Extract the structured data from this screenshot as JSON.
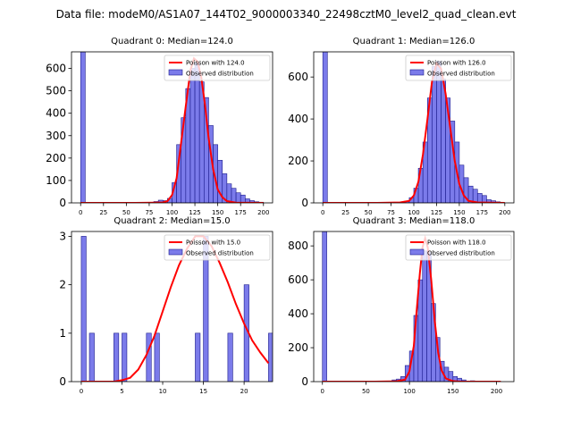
{
  "figure": {
    "suptitle": "Data file: modeM0/AS1A07_144T02_9000003340_22498cztM0_level2_quad_clean.evt"
  },
  "colors": {
    "bar_fill": "#7b7bea",
    "bar_edge": "#1a1a8c",
    "poisson_line": "#ff0000"
  },
  "chart_data": [
    {
      "type": "bar",
      "title": "Quadrant 0: Median=124.0",
      "xlim": [
        -10,
        210
      ],
      "ylim": [
        0,
        674
      ],
      "xticks": [
        0,
        25,
        50,
        75,
        100,
        125,
        150,
        175,
        200
      ],
      "yticks": [
        0,
        100,
        200,
        300,
        400,
        500,
        600
      ],
      "bin_width": 5,
      "bins": [
        {
          "x": 0,
          "count": 674
        },
        {
          "x": 80,
          "count": 6
        },
        {
          "x": 85,
          "count": 12
        },
        {
          "x": 90,
          "count": 10
        },
        {
          "x": 95,
          "count": 20
        },
        {
          "x": 100,
          "count": 90
        },
        {
          "x": 105,
          "count": 260
        },
        {
          "x": 110,
          "count": 380
        },
        {
          "x": 115,
          "count": 510
        },
        {
          "x": 120,
          "count": 600
        },
        {
          "x": 125,
          "count": 625
        },
        {
          "x": 130,
          "count": 540
        },
        {
          "x": 135,
          "count": 470
        },
        {
          "x": 140,
          "count": 345
        },
        {
          "x": 145,
          "count": 260
        },
        {
          "x": 150,
          "count": 190
        },
        {
          "x": 155,
          "count": 130
        },
        {
          "x": 160,
          "count": 85
        },
        {
          "x": 165,
          "count": 65
        },
        {
          "x": 170,
          "count": 45
        },
        {
          "x": 175,
          "count": 35
        },
        {
          "x": 180,
          "count": 18
        },
        {
          "x": 185,
          "count": 10
        },
        {
          "x": 190,
          "count": 5
        },
        {
          "x": 195,
          "count": 3
        }
      ],
      "poisson": {
        "mean": 124.0,
        "points": [
          [
            0,
            0
          ],
          [
            60,
            0
          ],
          [
            80,
            1
          ],
          [
            90,
            2
          ],
          [
            95,
            8
          ],
          [
            100,
            35
          ],
          [
            105,
            110
          ],
          [
            110,
            270
          ],
          [
            115,
            430
          ],
          [
            120,
            590
          ],
          [
            124,
            645
          ],
          [
            128,
            630
          ],
          [
            132,
            560
          ],
          [
            136,
            440
          ],
          [
            140,
            290
          ],
          [
            145,
            150
          ],
          [
            150,
            60
          ],
          [
            155,
            25
          ],
          [
            160,
            8
          ],
          [
            170,
            1
          ],
          [
            200,
            0
          ]
        ]
      },
      "legend": [
        "Poisson with 124.0",
        "Observed distribution"
      ]
    },
    {
      "type": "bar",
      "title": "Quadrant 1: Median=126.0",
      "xlim": [
        -10,
        210
      ],
      "ylim": [
        0,
        720
      ],
      "xticks": [
        0,
        25,
        50,
        75,
        100,
        125,
        150,
        175,
        200
      ],
      "yticks": [
        0,
        200,
        400,
        600
      ],
      "bin_width": 5,
      "bins": [
        {
          "x": 0,
          "count": 720
        },
        {
          "x": 85,
          "count": 5
        },
        {
          "x": 90,
          "count": 8
        },
        {
          "x": 95,
          "count": 25
        },
        {
          "x": 100,
          "count": 70
        },
        {
          "x": 105,
          "count": 165
        },
        {
          "x": 110,
          "count": 290
        },
        {
          "x": 115,
          "count": 500
        },
        {
          "x": 120,
          "count": 650
        },
        {
          "x": 125,
          "count": 675
        },
        {
          "x": 130,
          "count": 590
        },
        {
          "x": 135,
          "count": 500
        },
        {
          "x": 140,
          "count": 390
        },
        {
          "x": 145,
          "count": 290
        },
        {
          "x": 150,
          "count": 180
        },
        {
          "x": 155,
          "count": 120
        },
        {
          "x": 160,
          "count": 80
        },
        {
          "x": 165,
          "count": 65
        },
        {
          "x": 170,
          "count": 45
        },
        {
          "x": 175,
          "count": 35
        },
        {
          "x": 180,
          "count": 15
        },
        {
          "x": 185,
          "count": 10
        },
        {
          "x": 190,
          "count": 5
        }
      ],
      "poisson": {
        "mean": 126.0,
        "points": [
          [
            0,
            0
          ],
          [
            60,
            0
          ],
          [
            85,
            2
          ],
          [
            95,
            10
          ],
          [
            100,
            35
          ],
          [
            105,
            100
          ],
          [
            110,
            230
          ],
          [
            115,
            400
          ],
          [
            120,
            580
          ],
          [
            125,
            665
          ],
          [
            130,
            640
          ],
          [
            135,
            520
          ],
          [
            140,
            360
          ],
          [
            145,
            200
          ],
          [
            150,
            90
          ],
          [
            155,
            35
          ],
          [
            160,
            10
          ],
          [
            170,
            2
          ],
          [
            200,
            0
          ]
        ]
      },
      "legend": [
        "Poisson with 126.0",
        "Observed distribution"
      ]
    },
    {
      "type": "bar",
      "title": "Quadrant 2: Median=15.0",
      "xlim": [
        -1.2,
        23.5
      ],
      "ylim": [
        0,
        3.1
      ],
      "xticks": [
        0,
        5,
        10,
        15,
        20
      ],
      "yticks": [
        0,
        1,
        2,
        3
      ],
      "bin_width": 0.6,
      "bins": [
        {
          "x": 0,
          "count": 3
        },
        {
          "x": 1,
          "count": 1
        },
        {
          "x": 4,
          "count": 1
        },
        {
          "x": 5,
          "count": 1
        },
        {
          "x": 8,
          "count": 1
        },
        {
          "x": 9,
          "count": 1
        },
        {
          "x": 14,
          "count": 1
        },
        {
          "x": 15,
          "count": 3
        },
        {
          "x": 18,
          "count": 1
        },
        {
          "x": 20,
          "count": 2
        },
        {
          "x": 23,
          "count": 1
        }
      ],
      "poisson": {
        "mean": 15.0,
        "points": [
          [
            0,
            0
          ],
          [
            4,
            0
          ],
          [
            5,
            0.03
          ],
          [
            6,
            0.08
          ],
          [
            7,
            0.25
          ],
          [
            8,
            0.55
          ],
          [
            9,
            0.95
          ],
          [
            10,
            1.45
          ],
          [
            11,
            1.95
          ],
          [
            12,
            2.4
          ],
          [
            13,
            2.75
          ],
          [
            14,
            3.0
          ],
          [
            15,
            3.0
          ],
          [
            16,
            2.8
          ],
          [
            17,
            2.45
          ],
          [
            18,
            2.05
          ],
          [
            19,
            1.6
          ],
          [
            20,
            1.2
          ],
          [
            21,
            0.85
          ],
          [
            22,
            0.6
          ],
          [
            23,
            0.38
          ]
        ]
      },
      "legend": [
        "Poisson with 15.0",
        "Observed distribution"
      ]
    },
    {
      "type": "bar",
      "title": "Quadrant 3: Median=118.0",
      "xlim": [
        -10,
        220
      ],
      "ylim": [
        0,
        885
      ],
      "xticks": [
        0,
        50,
        100,
        150,
        200
      ],
      "yticks": [
        0,
        200,
        400,
        600,
        800
      ],
      "bin_width": 5,
      "bins": [
        {
          "x": 0,
          "count": 885
        },
        {
          "x": 70,
          "count": 3
        },
        {
          "x": 80,
          "count": 10
        },
        {
          "x": 85,
          "count": 15
        },
        {
          "x": 90,
          "count": 30
        },
        {
          "x": 95,
          "count": 95
        },
        {
          "x": 100,
          "count": 180
        },
        {
          "x": 105,
          "count": 390
        },
        {
          "x": 110,
          "count": 600
        },
        {
          "x": 115,
          "count": 770
        },
        {
          "x": 120,
          "count": 760
        },
        {
          "x": 125,
          "count": 460
        },
        {
          "x": 130,
          "count": 260
        },
        {
          "x": 135,
          "count": 120
        },
        {
          "x": 140,
          "count": 85
        },
        {
          "x": 145,
          "count": 60
        },
        {
          "x": 150,
          "count": 30
        },
        {
          "x": 155,
          "count": 20
        },
        {
          "x": 160,
          "count": 10
        },
        {
          "x": 170,
          "count": 5
        }
      ],
      "poisson": {
        "mean": 118.0,
        "points": [
          [
            0,
            0
          ],
          [
            60,
            0
          ],
          [
            85,
            2
          ],
          [
            95,
            12
          ],
          [
            100,
            60
          ],
          [
            105,
            210
          ],
          [
            108,
            400
          ],
          [
            112,
            640
          ],
          [
            115,
            790
          ],
          [
            118,
            845
          ],
          [
            121,
            790
          ],
          [
            125,
            600
          ],
          [
            129,
            360
          ],
          [
            133,
            170
          ],
          [
            137,
            65
          ],
          [
            142,
            18
          ],
          [
            150,
            3
          ],
          [
            160,
            0
          ],
          [
            205,
            0
          ]
        ]
      },
      "legend": [
        "Poisson with 118.0",
        "Observed distribution"
      ]
    }
  ]
}
